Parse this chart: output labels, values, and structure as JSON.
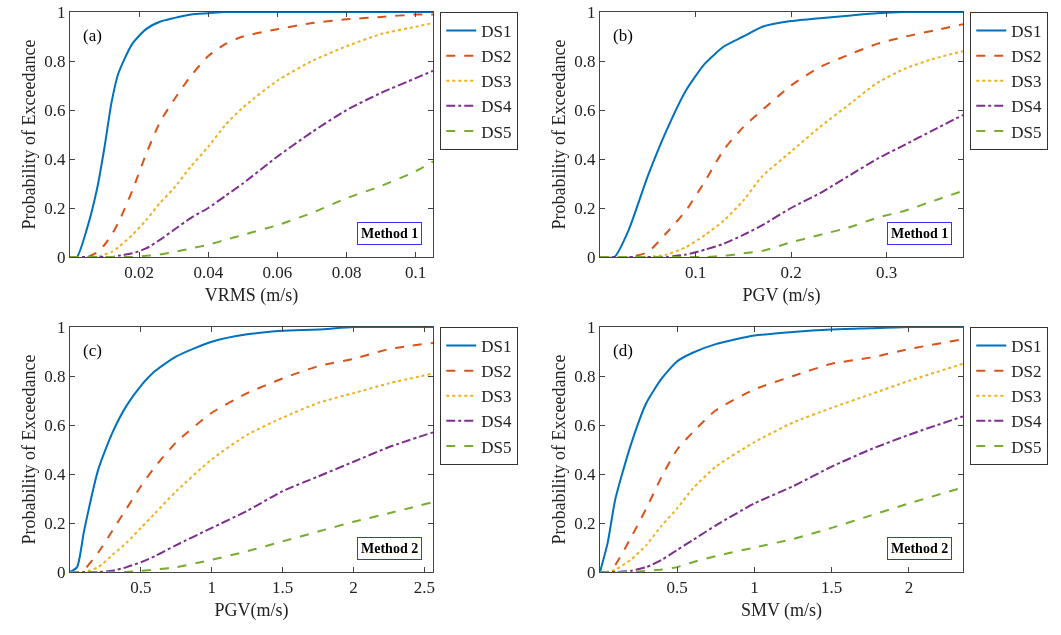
{
  "chart_data": [
    {
      "type": "line",
      "xlabel": "VRMS (m/s)",
      "ylabel": "Probability of Exceedance",
      "annotations": [
        "(a)",
        "Method 1"
      ],
      "legend": "top right",
      "grid": false,
      "x": [
        0,
        0.002,
        0.005,
        0.008,
        0.01,
        0.012,
        0.014,
        0.018,
        0.022,
        0.026,
        0.03,
        0.035,
        0.04,
        0.045,
        0.05,
        0.06,
        0.07,
        0.08,
        0.09,
        0.1,
        0.105
      ],
      "xlim": [
        0,
        0.105
      ],
      "xticks": [
        0.02,
        0.04,
        0.06,
        0.08,
        0.1
      ],
      "ylim": [
        0,
        1
      ],
      "yticks": [
        0,
        0.2,
        0.4,
        0.6,
        0.8,
        1
      ],
      "series": [
        {
          "name": "DS1",
          "color": "#0072bd",
          "line_style": "solid",
          "values": [
            0,
            0,
            0.12,
            0.29,
            0.45,
            0.63,
            0.75,
            0.87,
            0.93,
            0.96,
            0.975,
            0.99,
            0.995,
            1,
            1,
            1,
            1,
            1,
            1,
            1,
            1
          ]
        },
        {
          "name": "DS2",
          "color": "#d95319",
          "line_style": "dashed",
          "values": [
            0,
            0,
            0,
            0.02,
            0.05,
            0.09,
            0.14,
            0.27,
            0.42,
            0.55,
            0.64,
            0.74,
            0.82,
            0.87,
            0.9,
            0.93,
            0.955,
            0.97,
            0.98,
            0.99,
            0.99
          ]
        },
        {
          "name": "DS3",
          "color": "#edb120",
          "line_style": "dotted",
          "values": [
            null,
            null,
            0,
            0,
            0.01,
            0.02,
            0.04,
            0.09,
            0.15,
            0.22,
            0.28,
            0.37,
            0.45,
            0.54,
            0.61,
            0.72,
            0.8,
            0.86,
            0.91,
            0.94,
            0.955
          ]
        },
        {
          "name": "DS4",
          "color": "#7e2f8e",
          "line_style": "dashdot",
          "values": [
            0,
            0,
            0,
            0,
            0,
            0,
            0.005,
            0.015,
            0.035,
            0.07,
            0.11,
            0.16,
            0.2,
            0.25,
            0.3,
            0.41,
            0.51,
            0.6,
            0.67,
            0.73,
            0.76
          ]
        },
        {
          "name": "DS5",
          "color": "#77ac30",
          "line_style": "dashed",
          "values": [
            0,
            0,
            0,
            0,
            0,
            0,
            0,
            0,
            0.005,
            0.01,
            0.02,
            0.035,
            0.05,
            0.07,
            0.09,
            0.13,
            0.18,
            0.24,
            0.29,
            0.35,
            0.39
          ]
        }
      ]
    },
    {
      "type": "line",
      "xlabel": "PGV (m/s)",
      "ylabel": "Probability of Exceedance",
      "annotations": [
        "(b)",
        "Method 1"
      ],
      "legend": "top right",
      "grid": false,
      "x": [
        0,
        0.015,
        0.03,
        0.05,
        0.07,
        0.09,
        0.11,
        0.13,
        0.15,
        0.17,
        0.2,
        0.23,
        0.26,
        0.29,
        0.32,
        0.35,
        0.38
      ],
      "xlim": [
        0,
        0.38
      ],
      "xticks": [
        0.1,
        0.2,
        0.3
      ],
      "ylim": [
        0,
        1
      ],
      "yticks": [
        0,
        0.2,
        0.4,
        0.6,
        0.8,
        1
      ],
      "series": [
        {
          "name": "DS1",
          "color": "#0072bd",
          "line_style": "solid",
          "values": [
            0,
            0,
            0.11,
            0.33,
            0.52,
            0.68,
            0.79,
            0.86,
            0.9,
            0.94,
            0.963,
            0.975,
            0.985,
            0.995,
            1,
            1,
            1
          ]
        },
        {
          "name": "DS2",
          "color": "#d95319",
          "line_style": "dashed",
          "values": [
            0,
            0,
            0,
            0.02,
            0.1,
            0.19,
            0.31,
            0.44,
            0.53,
            0.6,
            0.7,
            0.775,
            0.825,
            0.87,
            0.9,
            0.925,
            0.95
          ]
        },
        {
          "name": "DS3",
          "color": "#edb120",
          "line_style": "dotted",
          "values": [
            null,
            null,
            0,
            0,
            0.01,
            0.04,
            0.09,
            0.15,
            0.23,
            0.33,
            0.43,
            0.53,
            0.62,
            0.71,
            0.77,
            0.81,
            0.84
          ]
        },
        {
          "name": "DS4",
          "color": "#7e2f8e",
          "line_style": "dashdot",
          "values": [
            0,
            0,
            0,
            0,
            0,
            0.01,
            0.03,
            0.055,
            0.09,
            0.13,
            0.2,
            0.26,
            0.33,
            0.4,
            0.46,
            0.52,
            0.58
          ]
        },
        {
          "name": "DS5",
          "color": "#77ac30",
          "line_style": "dashed",
          "values": [
            0,
            0,
            0,
            0,
            0,
            0,
            0,
            0.005,
            0.015,
            0.025,
            0.06,
            0.09,
            0.12,
            0.16,
            0.19,
            0.23,
            0.27
          ]
        }
      ]
    },
    {
      "type": "line",
      "xlabel": "PGV(m/s)",
      "ylabel": "Probability of Exceedance",
      "annotations": [
        "(c)",
        "Method 2"
      ],
      "legend": "top right",
      "grid": false,
      "x": [
        0,
        0.05,
        0.1,
        0.2,
        0.3,
        0.4,
        0.5,
        0.6,
        0.75,
        1,
        1.25,
        1.5,
        1.75,
        2,
        2.25,
        2.56
      ],
      "xlim": [
        0,
        2.56
      ],
      "xticks": [
        0.5,
        1,
        1.5,
        2,
        2.5
      ],
      "ylim": [
        0,
        1
      ],
      "yticks": [
        0,
        0.2,
        0.4,
        0.6,
        0.8,
        1
      ],
      "series": [
        {
          "name": "DS1",
          "color": "#0072bd",
          "line_style": "solid",
          "values": [
            0,
            0.02,
            0.17,
            0.42,
            0.57,
            0.68,
            0.76,
            0.82,
            0.88,
            0.94,
            0.97,
            0.985,
            0.99,
            1,
            1,
            1
          ]
        },
        {
          "name": "DS2",
          "color": "#d95319",
          "line_style": "dashed",
          "values": [
            0,
            0,
            0.01,
            0.08,
            0.17,
            0.26,
            0.35,
            0.43,
            0.53,
            0.65,
            0.73,
            0.79,
            0.84,
            0.87,
            0.91,
            0.935
          ]
        },
        {
          "name": "DS3",
          "color": "#edb120",
          "line_style": "dotted",
          "values": [
            0,
            0,
            0,
            0.02,
            0.07,
            0.12,
            0.18,
            0.24,
            0.33,
            0.46,
            0.56,
            0.63,
            0.69,
            0.73,
            0.77,
            0.81
          ]
        },
        {
          "name": "DS4",
          "color": "#7e2f8e",
          "line_style": "dashdot",
          "values": [
            0,
            0,
            0,
            0,
            0.005,
            0.02,
            0.04,
            0.065,
            0.11,
            0.18,
            0.25,
            0.33,
            0.39,
            0.45,
            0.51,
            0.57
          ]
        },
        {
          "name": "DS5",
          "color": "#77ac30",
          "line_style": "dashed",
          "values": [
            0,
            0,
            0,
            0,
            0,
            0,
            0.005,
            0.01,
            0.02,
            0.05,
            0.085,
            0.125,
            0.165,
            0.205,
            0.24,
            0.285
          ]
        }
      ]
    },
    {
      "type": "line",
      "xlabel": "SMV (m/s)",
      "ylabel": "Probability of Exceedance",
      "annotations": [
        "(d)",
        "Method 2"
      ],
      "legend": "top right",
      "grid": false,
      "x": [
        0,
        0.05,
        0.1,
        0.2,
        0.3,
        0.4,
        0.5,
        0.6,
        0.75,
        1,
        1.25,
        1.5,
        1.75,
        2,
        2.35
      ],
      "xlim": [
        0,
        2.35
      ],
      "xticks": [
        0.5,
        1,
        1.5,
        2
      ],
      "ylim": [
        0,
        1
      ],
      "yticks": [
        0,
        0.2,
        0.4,
        0.6,
        0.8,
        1
      ],
      "series": [
        {
          "name": "DS1",
          "color": "#0072bd",
          "line_style": "solid",
          "values": [
            0,
            0.12,
            0.3,
            0.52,
            0.69,
            0.79,
            0.86,
            0.895,
            0.93,
            0.965,
            0.98,
            0.99,
            0.995,
            1,
            1
          ]
        },
        {
          "name": "DS2",
          "color": "#d95319",
          "line_style": "dashed",
          "values": [
            0,
            0,
            0.03,
            0.14,
            0.26,
            0.39,
            0.5,
            0.57,
            0.66,
            0.745,
            0.8,
            0.85,
            0.875,
            0.91,
            0.95
          ]
        },
        {
          "name": "DS3",
          "color": "#edb120",
          "line_style": "dotted",
          "values": [
            0,
            0,
            0.01,
            0.05,
            0.11,
            0.19,
            0.26,
            0.34,
            0.43,
            0.53,
            0.61,
            0.67,
            0.725,
            0.78,
            0.85
          ]
        },
        {
          "name": "DS4",
          "color": "#7e2f8e",
          "line_style": "dashdot",
          "values": [
            0,
            0,
            0,
            0.005,
            0.02,
            0.05,
            0.09,
            0.13,
            0.19,
            0.28,
            0.35,
            0.43,
            0.5,
            0.56,
            0.635
          ]
        },
        {
          "name": "DS5",
          "color": "#77ac30",
          "line_style": "dashed",
          "values": [
            0,
            0,
            0,
            0,
            0.005,
            0.01,
            0.02,
            0.04,
            0.065,
            0.1,
            0.135,
            0.18,
            0.23,
            0.28,
            0.345
          ]
        }
      ]
    }
  ]
}
